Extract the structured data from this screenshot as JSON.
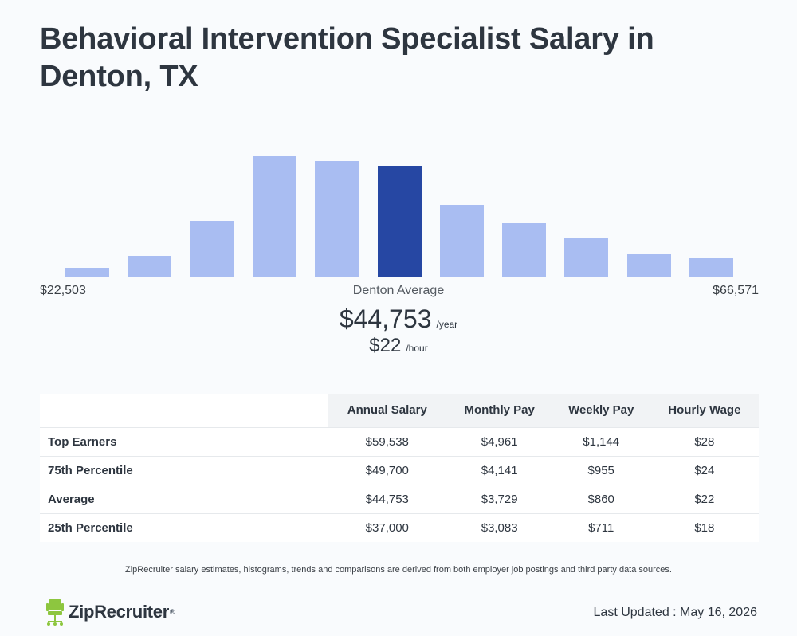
{
  "title": "Behavioral Intervention Specialist Salary in Denton, TX",
  "chart_data": {
    "type": "bar",
    "values": [
      0.08,
      0.18,
      0.47,
      1.0,
      0.96,
      0.92,
      0.6,
      0.45,
      0.33,
      0.19,
      0.16
    ],
    "highlight_index": 5,
    "colors": {
      "bar": "#a9bdf2",
      "highlight": "#2647a3"
    },
    "range_min": "$22,503",
    "range_max": "$66,571",
    "average_label": "Denton Average"
  },
  "average": {
    "year_value": "$44,753",
    "year_unit": "/year",
    "hour_value": "$22",
    "hour_unit": "/hour"
  },
  "table": {
    "headers": [
      "Annual Salary",
      "Monthly Pay",
      "Weekly Pay",
      "Hourly Wage"
    ],
    "rows": [
      {
        "label": "Top Earners",
        "values": [
          "$59,538",
          "$4,961",
          "$1,144",
          "$28"
        ]
      },
      {
        "label": "75th Percentile",
        "values": [
          "$49,700",
          "$4,141",
          "$955",
          "$24"
        ]
      },
      {
        "label": "Average",
        "values": [
          "$44,753",
          "$3,729",
          "$860",
          "$22"
        ]
      },
      {
        "label": "25th Percentile",
        "values": [
          "$37,000",
          "$3,083",
          "$711",
          "$18"
        ]
      }
    ]
  },
  "disclaimer": "ZipRecruiter salary estimates, histograms, trends and comparisons are derived from both employer job postings and third party data sources.",
  "brand": {
    "name": "ZipRecruiter",
    "icon": "ziprecruiter-chair-icon",
    "color": "#8dc63f"
  },
  "last_updated": "Last Updated : May 16, 2026"
}
